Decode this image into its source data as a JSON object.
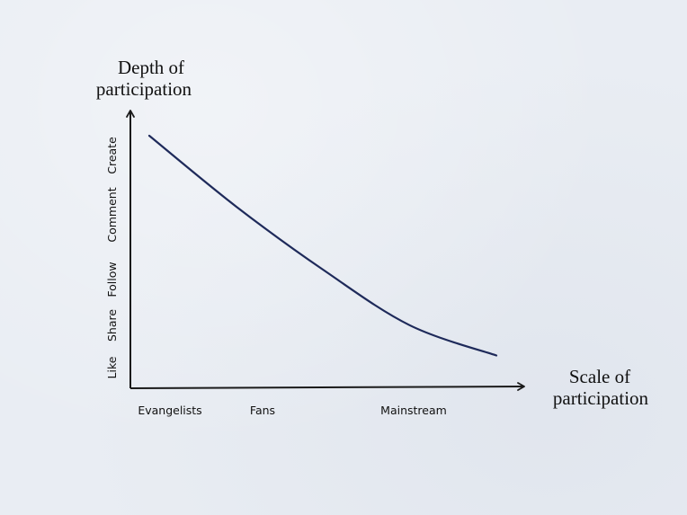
{
  "chart_data": {
    "type": "line",
    "ylabel_lines": [
      "Depth of",
      "participation"
    ],
    "xlabel_lines": [
      "Scale of",
      "participation"
    ],
    "y_levels": [
      "Like",
      "Share",
      "Follow",
      "Comment",
      "Create"
    ],
    "x_categories": [
      "Evangelists",
      "Fans",
      "Mainstream"
    ],
    "series": [
      {
        "values": [
          [
            0.0,
            1.0
          ],
          [
            0.25,
            0.72
          ],
          [
            0.5,
            0.47
          ],
          [
            0.75,
            0.25
          ],
          [
            1.0,
            0.13
          ]
        ]
      }
    ],
    "grid": false,
    "legend": "none"
  },
  "colors": {
    "curve": "#1e2a5a",
    "axis": "#1a1a1a",
    "text": "#111111"
  }
}
